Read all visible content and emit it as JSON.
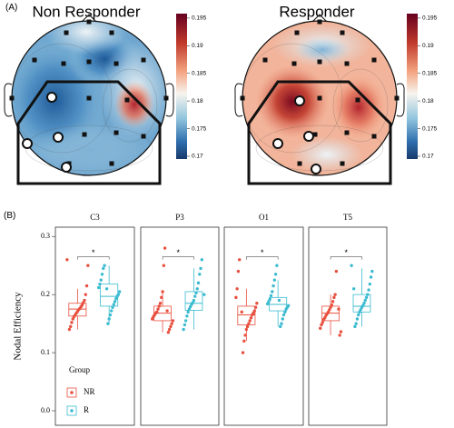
{
  "panel_labels": [
    "(A)",
    "(B)"
  ],
  "chart_data": [
    {
      "type": "topomap",
      "title": "Non Responder",
      "clim": [
        0.1695,
        0.1958
      ],
      "cticks": [
        0.17,
        0.175,
        0.18,
        0.185,
        0.19,
        0.195
      ]
    },
    {
      "type": "topomap",
      "title": "Responder",
      "clim": [
        0.1695,
        0.1958
      ],
      "cticks": [
        0.17,
        0.175,
        0.18,
        0.185,
        0.19,
        0.195
      ]
    },
    {
      "type": "box",
      "ylabel": "Nodal Efficiency",
      "legend_title": "Group",
      "facets": [
        "C3",
        "P3",
        "O1",
        "T5"
      ],
      "significance": [
        "*",
        "*",
        "*",
        "*"
      ],
      "ylim": [
        -0.025,
        0.316
      ],
      "yticks": [
        {
          "value": 0,
          "label": "0.0"
        },
        0.1,
        0.2,
        0.3
      ],
      "series": [
        {
          "name": "NR",
          "color": "#e8503f",
          "boxes": [
            {
              "whislo": 0.14,
              "q1": 0.163,
              "median": 0.175,
              "q3": 0.185,
              "whishi": 0.21,
              "points": [
                0.26,
                0.25,
                0.215,
                0.2,
                0.19,
                0.186,
                0.182,
                0.179,
                0.176,
                0.174,
                0.171,
                0.168,
                0.165,
                0.162,
                0.158,
                0.152,
                0.145,
                0.14
              ]
            },
            {
              "whislo": 0.135,
              "q1": 0.155,
              "median": 0.168,
              "q3": 0.18,
              "whishi": 0.205,
              "points": [
                0.28,
                0.25,
                0.205,
                0.195,
                0.185,
                0.18,
                0.175,
                0.17,
                0.168,
                0.165,
                0.162,
                0.158,
                0.155,
                0.15,
                0.145,
                0.14,
                0.135,
                0.172
              ]
            },
            {
              "whislo": 0.12,
              "q1": 0.148,
              "median": 0.165,
              "q3": 0.18,
              "whishi": 0.21,
              "points": [
                0.26,
                0.24,
                0.21,
                0.195,
                0.185,
                0.178,
                0.172,
                0.168,
                0.165,
                0.16,
                0.155,
                0.15,
                0.145,
                0.14,
                0.13,
                0.12,
                0.1,
                0.17
              ]
            },
            {
              "whislo": 0.13,
              "q1": 0.155,
              "median": 0.168,
              "q3": 0.18,
              "whishi": 0.2,
              "points": [
                0.24,
                0.2,
                0.195,
                0.188,
                0.182,
                0.178,
                0.174,
                0.17,
                0.167,
                0.164,
                0.16,
                0.157,
                0.152,
                0.148,
                0.142,
                0.136,
                0.13,
                0.175
              ]
            }
          ]
        },
        {
          "name": "R",
          "color": "#3bbbd0",
          "boxes": [
            {
              "whislo": 0.148,
              "q1": 0.18,
              "median": 0.197,
              "q3": 0.218,
              "whishi": 0.25,
              "points": [
                0.25,
                0.245,
                0.235,
                0.225,
                0.218,
                0.212,
                0.205,
                0.2,
                0.197,
                0.193,
                0.188,
                0.183,
                0.178,
                0.172,
                0.165,
                0.158,
                0.15,
                0.21
              ]
            },
            {
              "whislo": 0.14,
              "q1": 0.173,
              "median": 0.185,
              "q3": 0.205,
              "whishi": 0.245,
              "points": [
                0.26,
                0.245,
                0.235,
                0.22,
                0.21,
                0.203,
                0.197,
                0.19,
                0.186,
                0.183,
                0.179,
                0.175,
                0.17,
                0.163,
                0.155,
                0.148,
                0.14,
                0.2
              ]
            },
            {
              "whislo": 0.145,
              "q1": 0.172,
              "median": 0.183,
              "q3": 0.195,
              "whishi": 0.225,
              "points": [
                0.25,
                0.235,
                0.225,
                0.215,
                0.205,
                0.198,
                0.192,
                0.188,
                0.184,
                0.181,
                0.178,
                0.175,
                0.17,
                0.165,
                0.158,
                0.15,
                0.145,
                0.19
              ]
            },
            {
              "whislo": 0.145,
              "q1": 0.17,
              "median": 0.18,
              "q3": 0.2,
              "whishi": 0.245,
              "points": [
                0.25,
                0.24,
                0.23,
                0.218,
                0.208,
                0.2,
                0.195,
                0.19,
                0.185,
                0.181,
                0.178,
                0.174,
                0.17,
                0.165,
                0.158,
                0.15,
                0.145,
                0.21
              ]
            }
          ]
        }
      ]
    }
  ]
}
